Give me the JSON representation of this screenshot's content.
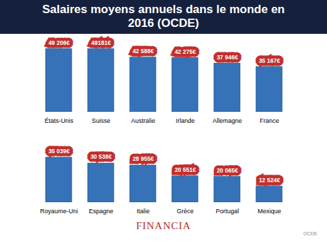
{
  "chart_data": {
    "type": "bar",
    "title": "Salaires moyens annuels dans le monde en 2016 (OCDE)",
    "categories": [
      "États-Unis",
      "Suisse",
      "Australie",
      "Irlande",
      "Allemagne",
      "France",
      "Royaume-Uni",
      "Espagne",
      "Italie",
      "Grèce",
      "Portugal",
      "Mexique"
    ],
    "values": [
      49206,
      49181,
      42588,
      42275,
      37946,
      35167,
      35039,
      30538,
      28955,
      20551,
      20065,
      12524
    ],
    "value_labels": [
      "49 206€",
      "49181€",
      "42 588€",
      "42 275€",
      "37 946€",
      "35 167€",
      "35 039€",
      "30 538€",
      "28 955€",
      "20 551€",
      "20 065€",
      "12 524€"
    ],
    "color": "#3572b8",
    "data_labels": true,
    "tick_labels": "x",
    "grid": false,
    "ylim": [
      0,
      50000
    ],
    "yticks": [],
    "annotations": [
      "FINANCIA",
      "OCDE"
    ]
  }
}
